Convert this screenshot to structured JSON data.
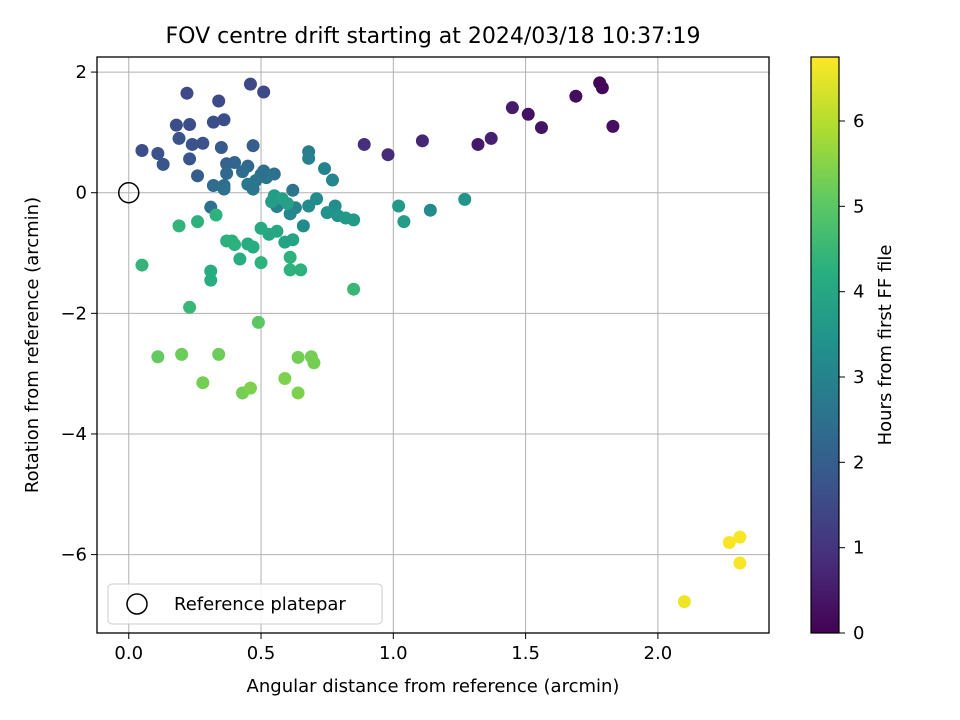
{
  "chart_data": {
    "type": "scatter",
    "title": "FOV centre drift starting at 2024/03/18 10:37:19",
    "xlabel": "Angular distance from reference (arcmin)",
    "ylabel": "Rotation from reference (arcmin)",
    "xlim": [
      -0.12,
      2.42
    ],
    "ylim": [
      -7.3,
      2.25
    ],
    "xticks": [
      0.0,
      0.5,
      1.0,
      1.5,
      2.0
    ],
    "xtick_labels": [
      "0.0",
      "0.5",
      "1.0",
      "1.5",
      "2.0"
    ],
    "yticks": [
      2,
      0,
      -2,
      -4,
      -6
    ],
    "ytick_labels": [
      "2",
      "0",
      "−2",
      "−4",
      "−6"
    ],
    "grid": true,
    "legend": {
      "position": "lower-left",
      "entries": [
        "Reference platepar"
      ]
    },
    "colorbar": {
      "label": "Hours from first FF file",
      "colormap": "viridis",
      "range": [
        0,
        6.75
      ],
      "ticks": [
        0,
        1,
        2,
        3,
        4,
        5,
        6
      ],
      "tick_labels": [
        "0",
        "1",
        "2",
        "3",
        "4",
        "5",
        "6"
      ]
    },
    "reference": {
      "x": 0,
      "y": 0,
      "label": "Reference platepar"
    },
    "series": [
      {
        "points": [
          [
            1.78,
            1.82,
            0.05
          ],
          [
            1.79,
            1.74,
            0.1
          ],
          [
            1.69,
            1.6,
            0.2
          ],
          [
            1.83,
            1.1,
            0.25
          ],
          [
            1.51,
            1.3,
            0.3
          ],
          [
            1.56,
            1.08,
            0.35
          ],
          [
            1.45,
            1.41,
            0.5
          ],
          [
            1.37,
            0.9,
            0.6
          ],
          [
            1.32,
            0.8,
            0.45
          ],
          [
            1.11,
            0.86,
            0.7
          ],
          [
            0.98,
            0.63,
            0.8
          ],
          [
            0.89,
            0.8,
            0.9
          ],
          [
            0.46,
            1.8,
            1.5
          ],
          [
            0.51,
            1.67,
            1.5
          ],
          [
            0.22,
            1.65,
            1.5
          ],
          [
            0.34,
            1.52,
            1.5
          ],
          [
            0.36,
            1.21,
            1.6
          ],
          [
            0.32,
            1.17,
            1.6
          ],
          [
            0.23,
            1.13,
            1.6
          ],
          [
            0.18,
            1.12,
            1.6
          ],
          [
            0.19,
            0.9,
            1.7
          ],
          [
            0.28,
            0.82,
            1.7
          ],
          [
            0.24,
            0.8,
            1.7
          ],
          [
            0.05,
            0.7,
            1.6
          ],
          [
            0.11,
            0.65,
            1.7
          ],
          [
            0.23,
            0.56,
            1.8
          ],
          [
            0.13,
            0.47,
            1.8
          ],
          [
            0.35,
            0.75,
            1.9
          ],
          [
            0.47,
            0.78,
            2.0
          ],
          [
            0.37,
            0.48,
            2.1
          ],
          [
            0.4,
            0.5,
            2.2
          ],
          [
            0.26,
            0.28,
            2.0
          ],
          [
            0.45,
            0.44,
            2.3
          ],
          [
            0.43,
            0.35,
            2.4
          ],
          [
            0.37,
            0.32,
            2.3
          ],
          [
            0.51,
            0.36,
            2.5
          ],
          [
            0.55,
            0.31,
            2.5
          ],
          [
            0.52,
            0.25,
            2.6
          ],
          [
            0.5,
            0.3,
            2.5
          ],
          [
            0.48,
            0.2,
            2.6
          ],
          [
            0.45,
            0.14,
            2.7
          ],
          [
            0.36,
            0.12,
            2.4
          ],
          [
            0.32,
            0.12,
            2.4
          ],
          [
            0.47,
            0.06,
            2.6
          ],
          [
            0.36,
            0.06,
            2.5
          ],
          [
            0.31,
            -0.24,
            2.5
          ],
          [
            0.62,
            0.04,
            2.6
          ],
          [
            0.68,
            0.68,
            2.8
          ],
          [
            0.68,
            0.57,
            2.9
          ],
          [
            0.74,
            0.4,
            3.0
          ],
          [
            0.77,
            0.21,
            3.1
          ],
          [
            0.56,
            -0.23,
            2.9
          ],
          [
            0.63,
            -0.25,
            3.0
          ],
          [
            0.61,
            -0.35,
            3.1
          ],
          [
            0.66,
            -0.55,
            3.2
          ],
          [
            0.68,
            -0.22,
            3.2
          ],
          [
            0.71,
            -0.1,
            3.2
          ],
          [
            0.78,
            -0.22,
            3.3
          ],
          [
            0.75,
            -0.33,
            3.4
          ],
          [
            0.79,
            -0.38,
            3.5
          ],
          [
            0.82,
            -0.42,
            3.6
          ],
          [
            0.85,
            -0.45,
            3.6
          ],
          [
            1.14,
            -0.29,
            3.2
          ],
          [
            1.27,
            -0.11,
            3.5
          ],
          [
            1.02,
            -0.22,
            3.6
          ],
          [
            1.04,
            -0.48,
            3.7
          ],
          [
            0.55,
            -0.05,
            3.7
          ],
          [
            0.54,
            -0.15,
            3.7
          ],
          [
            0.58,
            -0.1,
            3.8
          ],
          [
            0.6,
            -0.18,
            3.8
          ],
          [
            0.62,
            -0.78,
            3.9
          ],
          [
            0.59,
            -0.82,
            3.9
          ],
          [
            0.56,
            -0.64,
            4.0
          ],
          [
            0.53,
            -0.69,
            4.0
          ],
          [
            0.5,
            -0.59,
            4.1
          ],
          [
            0.45,
            -0.85,
            4.1
          ],
          [
            0.47,
            -0.9,
            4.2
          ],
          [
            0.39,
            -0.8,
            4.2
          ],
          [
            0.37,
            -0.8,
            4.3
          ],
          [
            0.4,
            -0.86,
            4.3
          ],
          [
            0.42,
            -1.1,
            4.2
          ],
          [
            0.5,
            -1.16,
            4.3
          ],
          [
            0.61,
            -1.07,
            4.3
          ],
          [
            0.61,
            -1.28,
            4.3
          ],
          [
            0.65,
            -1.28,
            4.3
          ],
          [
            0.31,
            -1.3,
            4.2
          ],
          [
            0.31,
            -1.45,
            4.2
          ],
          [
            0.33,
            -0.37,
            4.3
          ],
          [
            0.26,
            -0.48,
            4.3
          ],
          [
            0.19,
            -0.55,
            4.4
          ],
          [
            0.05,
            -1.2,
            4.4
          ],
          [
            0.23,
            -1.9,
            4.5
          ],
          [
            0.85,
            -1.6,
            4.5
          ],
          [
            0.49,
            -2.15,
            5.0
          ],
          [
            0.11,
            -2.72,
            5.1
          ],
          [
            0.2,
            -2.68,
            5.2
          ],
          [
            0.34,
            -2.68,
            5.2
          ],
          [
            0.28,
            -3.15,
            5.3
          ],
          [
            0.43,
            -3.32,
            5.3
          ],
          [
            0.46,
            -3.24,
            5.4
          ],
          [
            0.64,
            -2.73,
            5.3
          ],
          [
            0.69,
            -2.72,
            5.3
          ],
          [
            0.7,
            -2.82,
            5.3
          ],
          [
            0.59,
            -3.08,
            5.4
          ],
          [
            0.64,
            -3.32,
            5.4
          ],
          [
            2.1,
            -6.78,
            6.6
          ],
          [
            2.27,
            -5.8,
            6.7
          ],
          [
            2.31,
            -5.71,
            6.7
          ],
          [
            2.31,
            -6.14,
            6.7
          ]
        ]
      }
    ]
  }
}
